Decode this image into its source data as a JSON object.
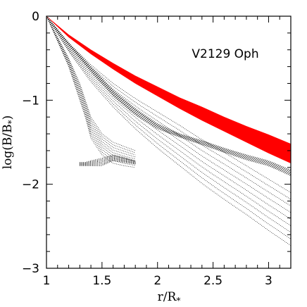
{
  "chart_data": {
    "type": "scatter",
    "title": "",
    "annotation": "V2129 Oph",
    "xlabel_main": "r/R",
    "xlabel_sub": "*",
    "ylabel_main": "log(B/B",
    "ylabel_sub": "*",
    "ylabel_close": ")",
    "xlim": [
      1,
      3.2
    ],
    "ylim": [
      -3,
      0
    ],
    "x_major_ticks": [
      1,
      1.5,
      2,
      2.5,
      3
    ],
    "x_tick_labels": [
      "1",
      "1.5",
      "2",
      "2.5",
      "3"
    ],
    "y_major_ticks": [
      0,
      -1,
      -2,
      -3
    ],
    "y_tick_labels": [
      "0",
      "−1",
      "−2",
      "−3"
    ],
    "x_minor_step": 0.1,
    "y_minor_step": 0.2,
    "grid": false,
    "colors": {
      "dipole_band": "#ff0000",
      "field_lines": "#000000",
      "axes": "#000000"
    },
    "series": [
      {
        "style": "band",
        "color": "#ff0000",
        "x": [
          1.0,
          1.2,
          1.4,
          1.6,
          1.8,
          2.0,
          2.2,
          2.4,
          2.6,
          2.8,
          3.0,
          3.2
        ],
        "upper": [
          0.0,
          -0.22,
          -0.4,
          -0.56,
          -0.71,
          -0.84,
          -0.97,
          -1.08,
          -1.2,
          -1.31,
          -1.41,
          -1.52
        ],
        "lower": [
          0.0,
          -0.25,
          -0.45,
          -0.63,
          -0.8,
          -0.95,
          -1.1,
          -1.24,
          -1.37,
          -1.5,
          -1.63,
          -1.75
        ]
      },
      {
        "style": "dots",
        "color": "#000000",
        "x": [
          1.0,
          1.2,
          1.4,
          1.6,
          1.8,
          2.0,
          2.2,
          2.4,
          2.6,
          2.8,
          3.0,
          3.2
        ],
        "upper": [
          0.0,
          -0.32,
          -0.58,
          -0.8,
          -0.98,
          -1.14,
          -1.3,
          -1.47,
          -1.62,
          -1.78,
          -1.94,
          -2.1
        ],
        "lower": [
          0.0,
          -0.42,
          -0.78,
          -1.08,
          -1.34,
          -1.57,
          -1.78,
          -1.99,
          -2.18,
          -2.36,
          -2.55,
          -2.73
        ]
      },
      {
        "style": "dots",
        "color": "#000000",
        "x": [
          1.0,
          1.2,
          1.4,
          1.6,
          1.8,
          2.0,
          2.2,
          2.4,
          2.6,
          2.8,
          3.0,
          3.2
        ],
        "upper": [
          0.0,
          -0.32,
          -0.6,
          -0.88,
          -1.1,
          -1.28,
          -1.4,
          -1.48,
          -1.57,
          -1.65,
          -1.72,
          -1.83
        ],
        "lower": [
          0.0,
          -0.34,
          -0.66,
          -0.95,
          -1.18,
          -1.34,
          -1.44,
          -1.53,
          -1.62,
          -1.71,
          -1.78,
          -1.9
        ]
      },
      {
        "style": "dots",
        "color": "#000000",
        "x": [
          1.0,
          1.1,
          1.2,
          1.3,
          1.35,
          1.4,
          1.5,
          1.6,
          1.7,
          1.8
        ],
        "upper": [
          0.0,
          -0.25,
          -0.5,
          -0.8,
          -1.0,
          -1.2,
          -1.4,
          -1.5,
          -1.55,
          -1.6
        ],
        "lower": [
          0.0,
          -0.3,
          -0.6,
          -1.0,
          -1.2,
          -1.45,
          -1.65,
          -1.75,
          -1.78,
          -1.8
        ]
      },
      {
        "style": "dots",
        "color": "#000000",
        "x": [
          1.3,
          1.35,
          1.4,
          1.5,
          1.6,
          1.7,
          1.8
        ],
        "upper": [
          -1.74,
          -1.74,
          -1.72,
          -1.69,
          -1.65,
          -1.68,
          -1.72
        ],
        "lower": [
          -1.78,
          -1.78,
          -1.78,
          -1.78,
          -1.72,
          -1.74,
          -1.76
        ]
      }
    ]
  }
}
